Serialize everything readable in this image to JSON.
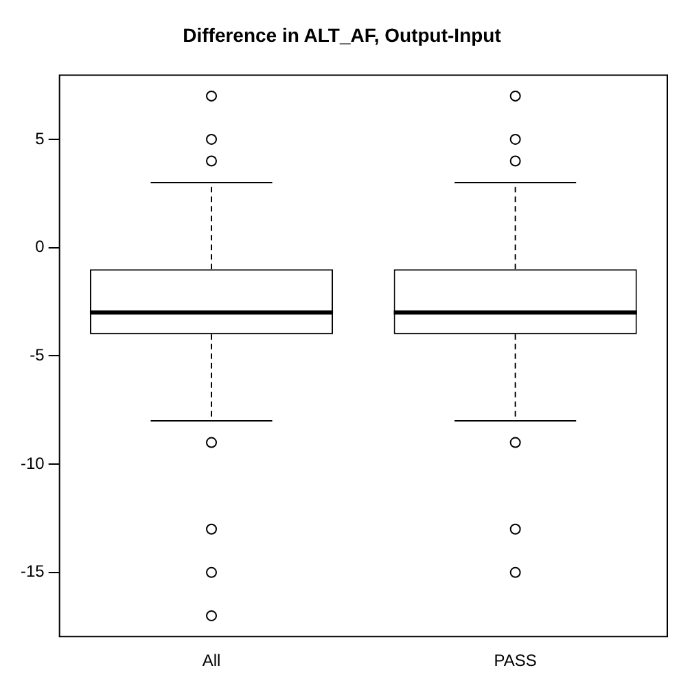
{
  "chart_data": {
    "type": "box",
    "title": "Difference in ALT_AF, Output-Input",
    "categories": [
      "All",
      "PASS"
    ],
    "boxes": [
      {
        "low": -8,
        "q1": -4,
        "median": -3,
        "q3": -1,
        "high": 3,
        "outliers": [
          7,
          5,
          4,
          -9,
          -13,
          -15,
          -17
        ]
      },
      {
        "low": -8,
        "q1": -4,
        "median": -3,
        "q3": -1,
        "high": 3,
        "outliers": [
          7,
          5,
          4,
          -9,
          -13,
          -15
        ]
      }
    ],
    "ylim": [
      -17.96,
      7.96
    ],
    "yticks": [
      -15,
      -10,
      -5,
      0,
      5
    ],
    "grid": false,
    "legend": false,
    "marker": "circle"
  }
}
